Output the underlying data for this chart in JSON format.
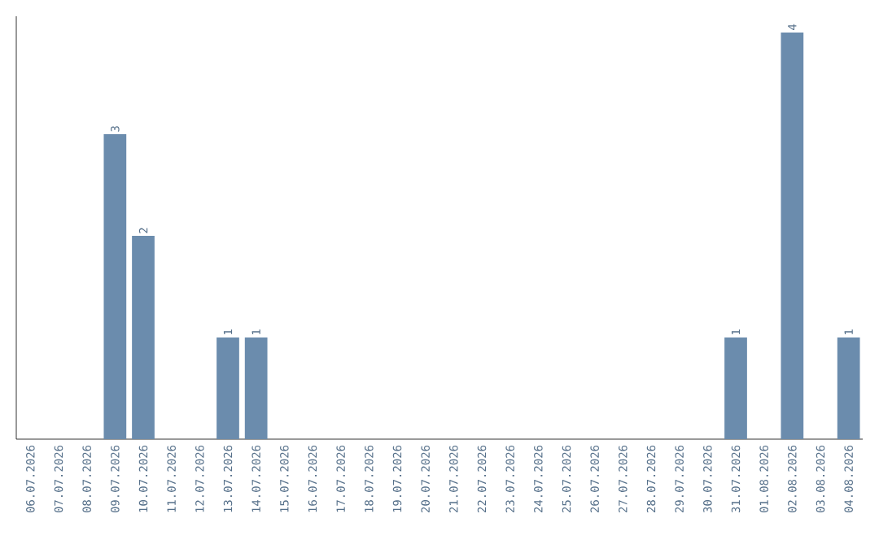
{
  "chart_data": {
    "type": "bar",
    "categories": [
      "06.07.2026",
      "07.07.2026",
      "08.07.2026",
      "09.07.2026",
      "10.07.2026",
      "11.07.2026",
      "12.07.2026",
      "13.07.2026",
      "14.07.2026",
      "15.07.2026",
      "16.07.2026",
      "17.07.2026",
      "18.07.2026",
      "19.07.2026",
      "20.07.2026",
      "21.07.2026",
      "22.07.2026",
      "23.07.2026",
      "24.07.2026",
      "25.07.2026",
      "26.07.2026",
      "27.07.2026",
      "28.07.2026",
      "29.07.2026",
      "30.07.2026",
      "31.07.2026",
      "01.08.2026",
      "02.08.2026",
      "03.08.2026",
      "04.08.2026"
    ],
    "values": [
      null,
      null,
      null,
      3,
      2,
      null,
      null,
      1,
      1,
      null,
      null,
      null,
      null,
      null,
      null,
      null,
      null,
      null,
      null,
      null,
      null,
      null,
      null,
      null,
      null,
      1,
      null,
      4,
      null,
      1
    ],
    "color": "#6b8cad",
    "data_labels": true,
    "tick_labels": "x"
  }
}
